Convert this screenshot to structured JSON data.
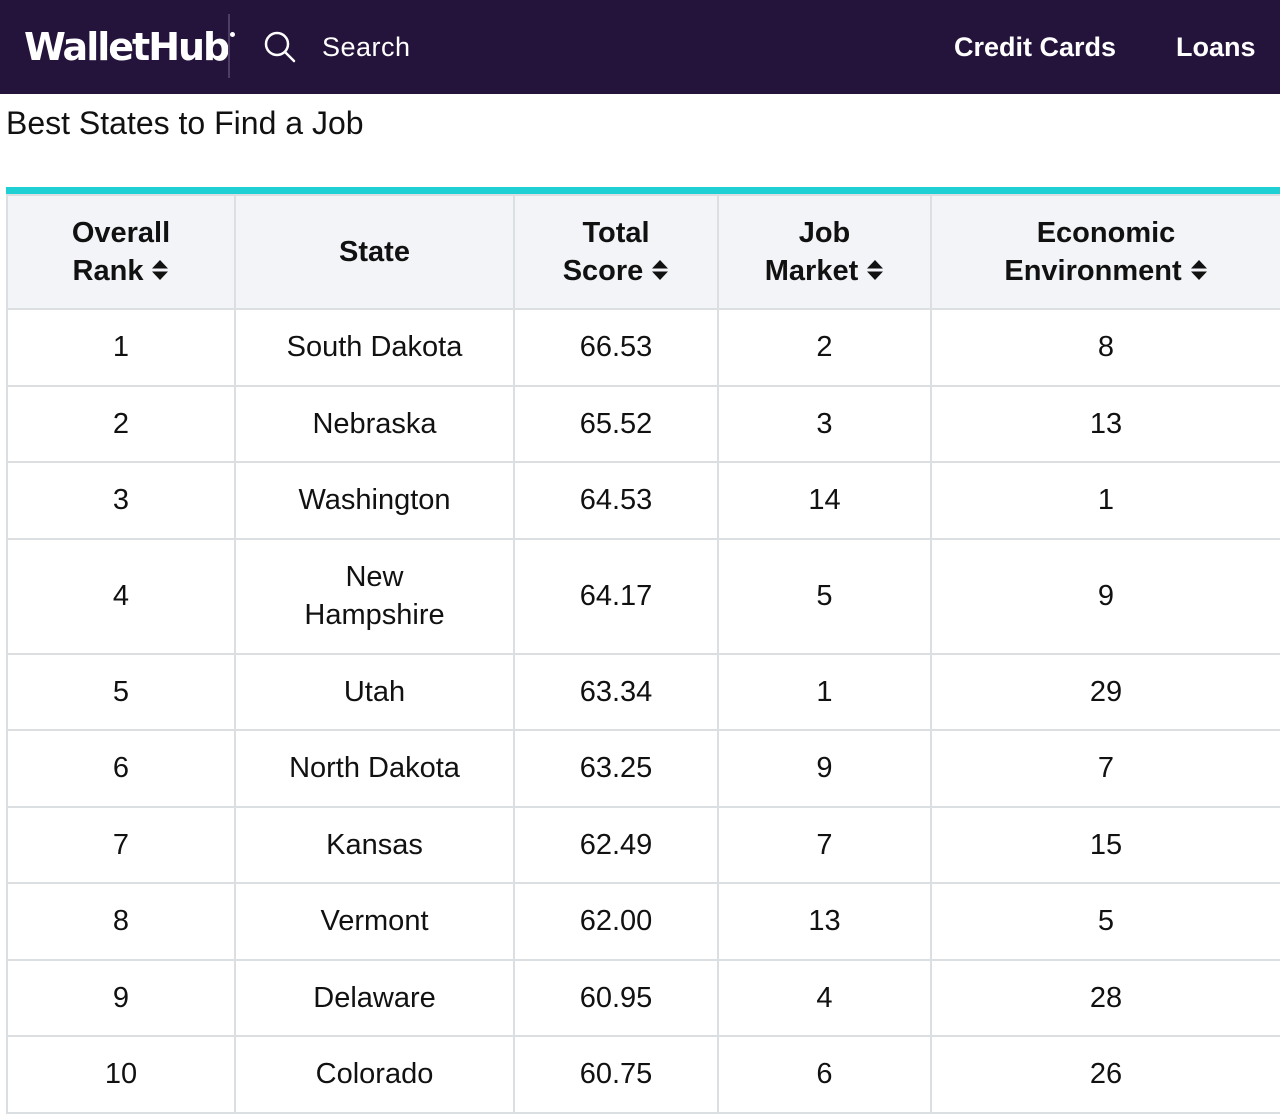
{
  "nav": {
    "logo": "WalletHub",
    "search_label": "Search",
    "links": [
      "Credit Cards",
      "Loans"
    ],
    "background_color": "#24133b"
  },
  "page": {
    "title": "Best States to Find a Job"
  },
  "table": {
    "accent_color": "#1ecfd3",
    "headers": {
      "rank": [
        "Overall",
        "Rank"
      ],
      "state": "State",
      "total": [
        "Total",
        "Score"
      ],
      "job": [
        "Job",
        "Market"
      ],
      "econ": [
        "Economic",
        "Environment"
      ]
    },
    "rows": [
      {
        "rank": "1",
        "state": [
          "South Dakota"
        ],
        "total": "66.53",
        "job": "2",
        "econ": "8"
      },
      {
        "rank": "2",
        "state": [
          "Nebraska"
        ],
        "total": "65.52",
        "job": "3",
        "econ": "13"
      },
      {
        "rank": "3",
        "state": [
          "Washington"
        ],
        "total": "64.53",
        "job": "14",
        "econ": "1"
      },
      {
        "rank": "4",
        "state": [
          "New",
          "Hampshire"
        ],
        "total": "64.17",
        "job": "5",
        "econ": "9"
      },
      {
        "rank": "5",
        "state": [
          "Utah"
        ],
        "total": "63.34",
        "job": "1",
        "econ": "29"
      },
      {
        "rank": "6",
        "state": [
          "North Dakota"
        ],
        "total": "63.25",
        "job": "9",
        "econ": "7"
      },
      {
        "rank": "7",
        "state": [
          "Kansas"
        ],
        "total": "62.49",
        "job": "7",
        "econ": "15"
      },
      {
        "rank": "8",
        "state": [
          "Vermont"
        ],
        "total": "62.00",
        "job": "13",
        "econ": "5"
      },
      {
        "rank": "9",
        "state": [
          "Delaware"
        ],
        "total": "60.95",
        "job": "4",
        "econ": "28"
      },
      {
        "rank": "10",
        "state": [
          "Colorado"
        ],
        "total": "60.75",
        "job": "6",
        "econ": "26"
      }
    ]
  }
}
